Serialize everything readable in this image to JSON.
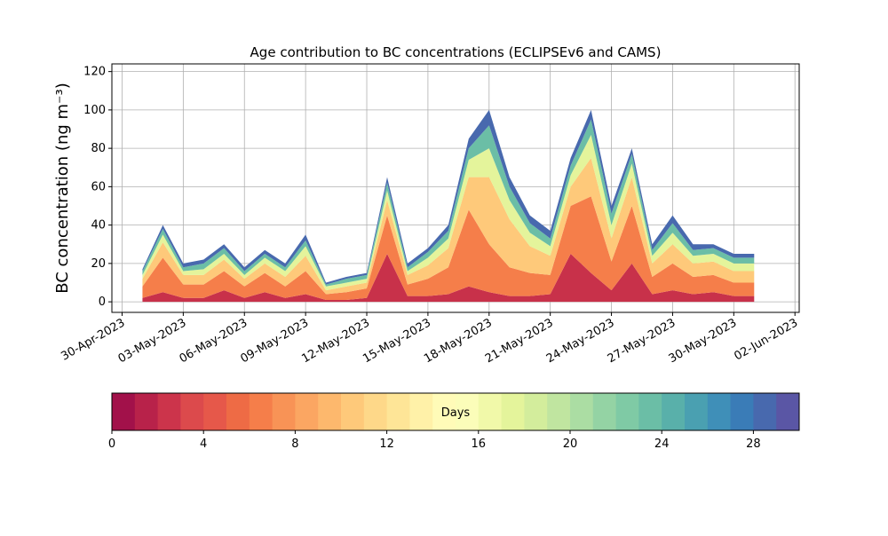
{
  "chart_data": {
    "type": "stacked_area",
    "title": "Age contribution to BC concentrations (ECLIPSEv6 and CAMS)",
    "y_label": "BC concentration (ng m⁻³)",
    "x": [
      "2023-05-01",
      "2023-05-02",
      "2023-05-03",
      "2023-05-04",
      "2023-05-05",
      "2023-05-06",
      "2023-05-07",
      "2023-05-08",
      "2023-05-09",
      "2023-05-10",
      "2023-05-11",
      "2023-05-12",
      "2023-05-13",
      "2023-05-14",
      "2023-05-15",
      "2023-05-16",
      "2023-05-17",
      "2023-05-18",
      "2023-05-19",
      "2023-05-20",
      "2023-05-21",
      "2023-05-22",
      "2023-05-23",
      "2023-05-24",
      "2023-05-25",
      "2023-05-26",
      "2023-05-27",
      "2023-05-28",
      "2023-05-29",
      "2023-05-30",
      "2023-05-31"
    ],
    "series": [
      {
        "color": "#c8314a",
        "values": [
          2,
          5,
          2,
          2,
          6,
          2,
          5,
          2,
          4,
          1,
          1,
          2,
          25,
          3,
          3,
          4,
          8,
          5,
          3,
          3,
          4,
          25,
          15,
          6,
          20,
          4,
          6,
          4,
          5,
          3,
          3
        ]
      },
      {
        "color": "#f57e4a",
        "values": [
          6,
          18,
          7,
          7,
          10,
          6,
          10,
          6,
          12,
          3,
          4,
          5,
          20,
          6,
          9,
          14,
          40,
          25,
          15,
          12,
          10,
          25,
          40,
          15,
          30,
          9,
          14,
          9,
          9,
          7,
          7
        ]
      },
      {
        "color": "#fec97a",
        "values": [
          4,
          8,
          5,
          5,
          6,
          4,
          5,
          5,
          8,
          2,
          3,
          3,
          8,
          5,
          7,
          10,
          17,
          35,
          25,
          14,
          10,
          10,
          20,
          12,
          15,
          7,
          10,
          7,
          7,
          6,
          6
        ]
      },
      {
        "color": "#e4f49b",
        "values": [
          2,
          4,
          2,
          3,
          3,
          2,
          3,
          3,
          5,
          2,
          2,
          2,
          5,
          2,
          4,
          5,
          9,
          15,
          10,
          7,
          5,
          6,
          12,
          7,
          7,
          4,
          6,
          4,
          4,
          4,
          4
        ]
      },
      {
        "color": "#6bbea6",
        "values": [
          2,
          3,
          2,
          3,
          3,
          2,
          2,
          2,
          3,
          1,
          2,
          2,
          4,
          2,
          3,
          4,
          6,
          12,
          7,
          5,
          4,
          5,
          8,
          6,
          5,
          3,
          5,
          3,
          3,
          3,
          3
        ]
      },
      {
        "color": "#4869ae",
        "values": [
          1,
          2,
          2,
          2,
          2,
          2,
          2,
          2,
          3,
          1,
          1,
          1,
          3,
          2,
          2,
          3,
          5,
          8,
          5,
          4,
          4,
          4,
          5,
          4,
          3,
          3,
          4,
          3,
          2,
          2,
          2
        ]
      }
    ],
    "xlim": [
      "2023-04-29T12:00",
      "2023-06-02T05:00"
    ],
    "xticks": [
      {
        "value": "2023-04-30",
        "label": "30-Apr-2023"
      },
      {
        "value": "2023-05-03",
        "label": "03-May-2023"
      },
      {
        "value": "2023-05-06",
        "label": "06-May-2023"
      },
      {
        "value": "2023-05-09",
        "label": "09-May-2023"
      },
      {
        "value": "2023-05-12",
        "label": "12-May-2023"
      },
      {
        "value": "2023-05-15",
        "label": "15-May-2023"
      },
      {
        "value": "2023-05-18",
        "label": "18-May-2023"
      },
      {
        "value": "2023-05-21",
        "label": "21-May-2023"
      },
      {
        "value": "2023-05-24",
        "label": "24-May-2023"
      },
      {
        "value": "2023-05-27",
        "label": "27-May-2023"
      },
      {
        "value": "2023-05-30",
        "label": "30-May-2023"
      },
      {
        "value": "2023-06-02",
        "label": "02-Jun-2023"
      }
    ],
    "ylim": [
      -5.5,
      124
    ],
    "yticks": [
      0,
      20,
      40,
      60,
      80,
      100,
      120
    ],
    "grid": true,
    "colorbar": {
      "label": "Days",
      "lim": [
        0,
        30
      ],
      "ticks": [
        0,
        4,
        8,
        12,
        16,
        20,
        24,
        28
      ],
      "colors": [
        "#a2114a",
        "#b8224a",
        "#cc344b",
        "#dc4a4c",
        "#e6584a",
        "#ee6b45",
        "#f57e4a",
        "#f89356",
        "#fba662",
        "#fdb86d",
        "#fec97a",
        "#fed889",
        "#fee597",
        "#fff1a8",
        "#fffbb8",
        "#fbfdb9",
        "#f1f9a9",
        "#e4f49b",
        "#d3ed9c",
        "#c0e5a0",
        "#abdda3",
        "#94d3a4",
        "#7fcaa5",
        "#6bbea6",
        "#59b0aa",
        "#4aa0b1",
        "#3f8fb8",
        "#3a7cb7",
        "#4869ae",
        "#5a56a5"
      ]
    }
  }
}
